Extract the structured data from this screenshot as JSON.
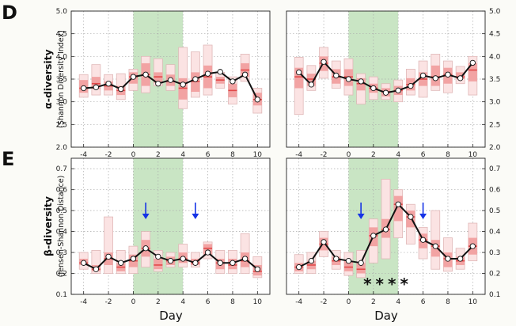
{
  "figure": {
    "row_D": {
      "letter": "D",
      "ylabel": "α-diversity",
      "ysublabel": "(Shannon Diversity Index)"
    },
    "row_E": {
      "letter": "E",
      "ylabel": "β-diversity",
      "ysublabel": "(Jensen-Shannon Distance)"
    },
    "xlabel": "Day",
    "stars": "****",
    "colors": {
      "line": "#111111",
      "marker_fill": "#ffffff",
      "shade": "#c9e5c4",
      "box_outer_fill": "#fbe3e3",
      "box_outer_stroke": "#e0b8b8",
      "box_inner_fill": "#f2a3a3",
      "box_median": "#e14848",
      "arrow": "#1533e6",
      "grid": "#aaaaaa"
    }
  },
  "chart_data": [
    {
      "id": "D-left",
      "type": "line",
      "ylim": [
        2.0,
        5.0
      ],
      "xlim": [
        -5,
        11
      ],
      "xticks": [
        -4,
        -2,
        0,
        2,
        4,
        6,
        8,
        10
      ],
      "yticks": [
        2.0,
        2.5,
        3.0,
        3.5,
        4.0,
        4.5,
        5.0
      ],
      "yticks_side": "left",
      "shaded_x": [
        0,
        4
      ],
      "grid": true,
      "x": [
        -4,
        -3,
        -2,
        -1,
        0,
        1,
        2,
        3,
        4,
        5,
        6,
        7,
        8,
        9,
        10
      ],
      "y": [
        3.3,
        3.32,
        3.4,
        3.28,
        3.55,
        3.6,
        3.4,
        3.48,
        3.38,
        3.5,
        3.62,
        3.66,
        3.45,
        3.6,
        3.05
      ],
      "boxes": [
        {
          "x": -4,
          "outer": [
            3.1,
            3.6
          ],
          "inner": [
            3.2,
            3.48
          ],
          "median": 3.3
        },
        {
          "x": -3,
          "outer": [
            3.15,
            3.82
          ],
          "inner": [
            3.28,
            3.55
          ],
          "median": 3.4
        },
        {
          "x": -2,
          "outer": [
            3.15,
            3.6
          ],
          "inner": [
            3.25,
            3.45
          ],
          "median": 3.35
        },
        {
          "x": -1,
          "outer": [
            3.05,
            3.62
          ],
          "inner": [
            3.15,
            3.35
          ],
          "median": 3.25
        },
        {
          "x": 0,
          "outer": [
            3.25,
            3.72
          ],
          "inner": [
            3.4,
            3.65
          ],
          "median": 3.55
        },
        {
          "x": 1,
          "outer": [
            3.2,
            4.0
          ],
          "inner": [
            3.35,
            3.85
          ],
          "median": 3.6
        },
        {
          "x": 2,
          "outer": [
            3.35,
            3.95
          ],
          "inner": [
            3.42,
            3.65
          ],
          "median": 3.55
        },
        {
          "x": 3,
          "outer": [
            3.25,
            3.82
          ],
          "inner": [
            3.35,
            3.6
          ],
          "median": 3.45
        },
        {
          "x": 4,
          "outer": [
            2.85,
            4.2
          ],
          "inner": [
            3.05,
            3.52
          ],
          "median": 3.3
        },
        {
          "x": 5,
          "outer": [
            3.1,
            4.1
          ],
          "inner": [
            3.22,
            3.65
          ],
          "median": 3.45
        },
        {
          "x": 6,
          "outer": [
            3.15,
            4.25
          ],
          "inner": [
            3.3,
            3.8
          ],
          "median": 3.55
        },
        {
          "x": 7,
          "outer": [
            3.3,
            3.65
          ],
          "inner": [
            3.4,
            3.55
          ],
          "median": 3.48
        },
        {
          "x": 8,
          "outer": [
            2.95,
            3.55
          ],
          "inner": [
            3.1,
            3.4
          ],
          "median": 3.25
        },
        {
          "x": 9,
          "outer": [
            3.45,
            4.05
          ],
          "inner": [
            3.55,
            3.85
          ],
          "median": 3.7
        },
        {
          "x": 10,
          "outer": [
            2.75,
            3.3
          ],
          "inner": [
            2.92,
            3.2
          ],
          "median": 3.05
        }
      ]
    },
    {
      "id": "D-right",
      "type": "line",
      "ylim": [
        2.0,
        5.0
      ],
      "xlim": [
        -5,
        11
      ],
      "xticks": [
        -4,
        -2,
        0,
        2,
        4,
        6,
        8,
        10
      ],
      "yticks": [
        2.0,
        2.5,
        3.0,
        3.5,
        4.0,
        4.5,
        5.0
      ],
      "yticks_side": "right",
      "shaded_x": [
        0,
        4
      ],
      "grid": true,
      "x": [
        -4,
        -3,
        -2,
        -1,
        0,
        1,
        2,
        3,
        4,
        5,
        6,
        7,
        8,
        9,
        10
      ],
      "y": [
        3.65,
        3.38,
        3.88,
        3.58,
        3.5,
        3.45,
        3.3,
        3.2,
        3.25,
        3.35,
        3.58,
        3.52,
        3.6,
        3.52,
        3.86
      ],
      "boxes": [
        {
          "x": -4,
          "outer": [
            2.72,
            3.98
          ],
          "inner": [
            3.3,
            3.75
          ],
          "median": 3.55
        },
        {
          "x": -3,
          "outer": [
            3.25,
            3.8
          ],
          "inner": [
            3.35,
            3.62
          ],
          "median": 3.5
        },
        {
          "x": -2,
          "outer": [
            3.52,
            4.2
          ],
          "inner": [
            3.68,
            4.0
          ],
          "median": 3.85
        },
        {
          "x": -1,
          "outer": [
            3.3,
            3.9
          ],
          "inner": [
            3.4,
            3.72
          ],
          "median": 3.55
        },
        {
          "x": 0,
          "outer": [
            3.15,
            3.95
          ],
          "inner": [
            3.35,
            3.72
          ],
          "median": 3.55
        },
        {
          "x": 1,
          "outer": [
            2.95,
            3.62
          ],
          "inner": [
            3.25,
            3.52
          ],
          "median": 3.4
        },
        {
          "x": 2,
          "outer": [
            3.05,
            3.55
          ],
          "inner": [
            3.2,
            3.4
          ],
          "median": 3.3
        },
        {
          "x": 3,
          "outer": [
            3.05,
            3.4
          ],
          "inner": [
            3.12,
            3.3
          ],
          "median": 3.22
        },
        {
          "x": 4,
          "outer": [
            3.0,
            3.48
          ],
          "inner": [
            3.15,
            3.35
          ],
          "median": 3.25
        },
        {
          "x": 5,
          "outer": [
            3.15,
            3.72
          ],
          "inner": [
            3.25,
            3.52
          ],
          "median": 3.38
        },
        {
          "x": 6,
          "outer": [
            3.1,
            3.9
          ],
          "inner": [
            3.35,
            3.65
          ],
          "median": 3.5
        },
        {
          "x": 7,
          "outer": [
            3.25,
            4.05
          ],
          "inner": [
            3.35,
            3.8
          ],
          "median": 3.55
        },
        {
          "x": 8,
          "outer": [
            3.2,
            3.9
          ],
          "inner": [
            3.4,
            3.75
          ],
          "median": 3.6
        },
        {
          "x": 9,
          "outer": [
            3.4,
            3.78
          ],
          "inner": [
            3.5,
            3.65
          ],
          "median": 3.55
        },
        {
          "x": 10,
          "outer": [
            3.15,
            4.0
          ],
          "inner": [
            3.45,
            3.85
          ],
          "median": 3.7
        }
      ]
    },
    {
      "id": "E-left",
      "type": "line",
      "ylim": [
        0.1,
        0.75
      ],
      "xlim": [
        -5,
        11
      ],
      "xticks": [
        -4,
        -2,
        0,
        2,
        4,
        6,
        8,
        10
      ],
      "yticks": [
        0.1,
        0.2,
        0.3,
        0.4,
        0.5,
        0.6,
        0.7
      ],
      "yticks_side": "left",
      "shaded_x": [
        0,
        4
      ],
      "grid": true,
      "x": [
        -4,
        -3,
        -2,
        -1,
        0,
        1,
        2,
        3,
        4,
        5,
        6,
        7,
        8,
        9,
        10
      ],
      "y": [
        0.25,
        0.22,
        0.28,
        0.25,
        0.27,
        0.32,
        0.28,
        0.26,
        0.27,
        0.25,
        0.3,
        0.25,
        0.25,
        0.27,
        0.22
      ],
      "arrows_x": [
        1,
        5
      ],
      "boxes": [
        {
          "x": -4,
          "outer": [
            0.22,
            0.3
          ],
          "inner": [
            0.24,
            0.27
          ],
          "median": 0.25
        },
        {
          "x": -3,
          "outer": [
            0.2,
            0.31
          ],
          "inner": [
            0.21,
            0.24
          ],
          "median": 0.22
        },
        {
          "x": -2,
          "outer": [
            0.2,
            0.47
          ],
          "inner": [
            0.24,
            0.3
          ],
          "median": 0.27
        },
        {
          "x": -1,
          "outer": [
            0.2,
            0.31
          ],
          "inner": [
            0.21,
            0.25
          ],
          "median": 0.23
        },
        {
          "x": 0,
          "outer": [
            0.2,
            0.33
          ],
          "inner": [
            0.23,
            0.29
          ],
          "median": 0.26
        },
        {
          "x": 1,
          "outer": [
            0.23,
            0.4
          ],
          "inner": [
            0.28,
            0.36
          ],
          "median": 0.32
        },
        {
          "x": 2,
          "outer": [
            0.21,
            0.31
          ],
          "inner": [
            0.22,
            0.27
          ],
          "median": 0.24
        },
        {
          "x": 3,
          "outer": [
            0.23,
            0.3
          ],
          "inner": [
            0.24,
            0.28
          ],
          "median": 0.26
        },
        {
          "x": 4,
          "outer": [
            0.23,
            0.34
          ],
          "inner": [
            0.25,
            0.3
          ],
          "median": 0.27
        },
        {
          "x": 5,
          "outer": [
            0.23,
            0.3
          ],
          "inner": [
            0.24,
            0.27
          ],
          "median": 0.25
        },
        {
          "x": 6,
          "outer": [
            0.27,
            0.35
          ],
          "inner": [
            0.29,
            0.34
          ],
          "median": 0.32
        },
        {
          "x": 7,
          "outer": [
            0.2,
            0.31
          ],
          "inner": [
            0.22,
            0.27
          ],
          "median": 0.25
        },
        {
          "x": 8,
          "outer": [
            0.2,
            0.31
          ],
          "inner": [
            0.22,
            0.27
          ],
          "median": 0.24
        },
        {
          "x": 9,
          "outer": [
            0.2,
            0.39
          ],
          "inner": [
            0.23,
            0.3
          ],
          "median": 0.26
        },
        {
          "x": 10,
          "outer": [
            0.18,
            0.28
          ],
          "inner": [
            0.19,
            0.24
          ],
          "median": 0.21
        }
      ]
    },
    {
      "id": "E-right",
      "type": "line",
      "ylim": [
        0.1,
        0.75
      ],
      "xlim": [
        -5,
        11
      ],
      "xticks": [
        -4,
        -2,
        0,
        2,
        4,
        6,
        8,
        10
      ],
      "yticks": [
        0.1,
        0.2,
        0.3,
        0.4,
        0.5,
        0.6,
        0.7
      ],
      "yticks_side": "right",
      "shaded_x": [
        0,
        4
      ],
      "grid": true,
      "x": [
        -4,
        -3,
        -2,
        -1,
        0,
        1,
        2,
        3,
        4,
        5,
        6,
        7,
        8,
        9,
        10
      ],
      "y": [
        0.23,
        0.26,
        0.35,
        0.27,
        0.26,
        0.25,
        0.38,
        0.41,
        0.53,
        0.47,
        0.36,
        0.33,
        0.27,
        0.27,
        0.33
      ],
      "arrows_x": [
        1,
        6
      ],
      "stars_x": [
        2,
        3,
        4,
        5
      ],
      "boxes": [
        {
          "x": -4,
          "outer": [
            0.2,
            0.29
          ],
          "inner": [
            0.21,
            0.25
          ],
          "median": 0.23
        },
        {
          "x": -3,
          "outer": [
            0.2,
            0.3
          ],
          "inner": [
            0.22,
            0.26
          ],
          "median": 0.24
        },
        {
          "x": -2,
          "outer": [
            0.28,
            0.4
          ],
          "inner": [
            0.31,
            0.37
          ],
          "median": 0.34
        },
        {
          "x": -1,
          "outer": [
            0.22,
            0.31
          ],
          "inner": [
            0.24,
            0.28
          ],
          "median": 0.26
        },
        {
          "x": 0,
          "outer": [
            0.19,
            0.3
          ],
          "inner": [
            0.21,
            0.26
          ],
          "median": 0.23
        },
        {
          "x": 1,
          "outer": [
            0.18,
            0.31
          ],
          "inner": [
            0.2,
            0.25
          ],
          "median": 0.22
        },
        {
          "x": 2,
          "outer": [
            0.25,
            0.46
          ],
          "inner": [
            0.33,
            0.42
          ],
          "median": 0.38
        },
        {
          "x": 3,
          "outer": [
            0.27,
            0.65
          ],
          "inner": [
            0.37,
            0.46
          ],
          "median": 0.41
        },
        {
          "x": 4,
          "outer": [
            0.37,
            0.6
          ],
          "inner": [
            0.45,
            0.57
          ],
          "median": 0.53
        },
        {
          "x": 5,
          "outer": [
            0.34,
            0.53
          ],
          "inner": [
            0.42,
            0.5
          ],
          "median": 0.47
        },
        {
          "x": 6,
          "outer": [
            0.27,
            0.42
          ],
          "inner": [
            0.32,
            0.39
          ],
          "median": 0.36
        },
        {
          "x": 7,
          "outer": [
            0.22,
            0.5
          ],
          "inner": [
            0.28,
            0.36
          ],
          "median": 0.33
        },
        {
          "x": 8,
          "outer": [
            0.21,
            0.37
          ],
          "inner": [
            0.23,
            0.3
          ],
          "median": 0.27
        },
        {
          "x": 9,
          "outer": [
            0.22,
            0.32
          ],
          "inner": [
            0.24,
            0.28
          ],
          "median": 0.26
        },
        {
          "x": 10,
          "outer": [
            0.26,
            0.44
          ],
          "inner": [
            0.29,
            0.37
          ],
          "median": 0.33
        }
      ]
    }
  ]
}
